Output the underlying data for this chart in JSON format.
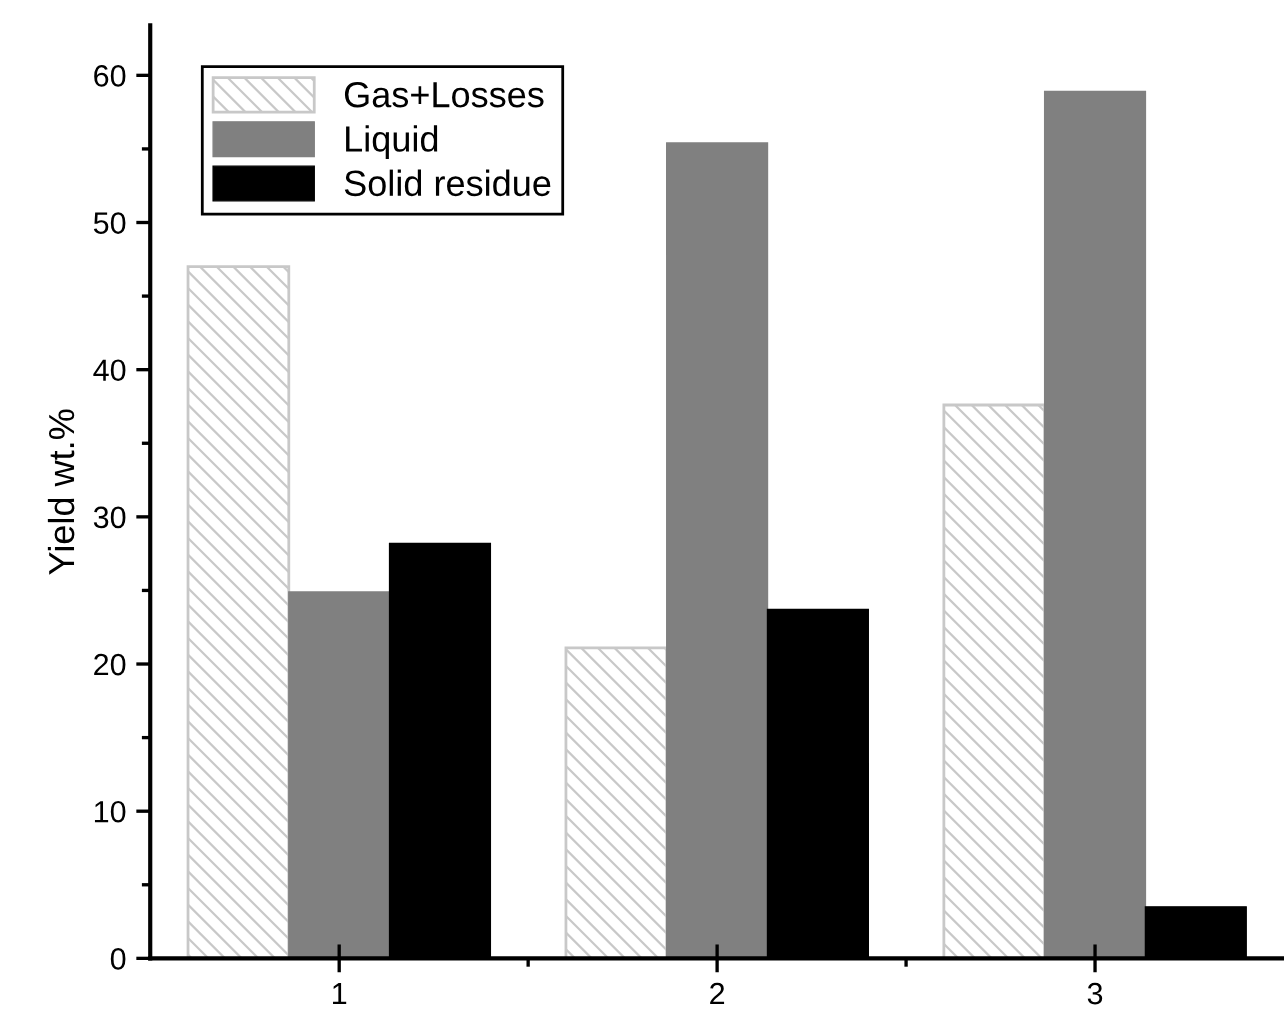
{
  "chart_data": {
    "type": "bar",
    "ylabel": "Yield wt.%",
    "categories": [
      "1",
      "2",
      "3"
    ],
    "series": [
      {
        "name": "Gas+Losses",
        "color": "#c8c8c8",
        "values": [
          47.0,
          21.1,
          37.6
        ]
      },
      {
        "name": "Liquid",
        "color": "#808080",
        "values": [
          24.9,
          55.4,
          58.9
        ]
      },
      {
        "name": "Solid residue",
        "color": "#000000",
        "values": [
          28.2,
          23.7,
          3.5
        ]
      }
    ],
    "ylim": [
      0,
      63.4
    ],
    "yticks": [
      0,
      10,
      20,
      30,
      40,
      50,
      60
    ],
    "grid": false,
    "legend": "top left"
  }
}
